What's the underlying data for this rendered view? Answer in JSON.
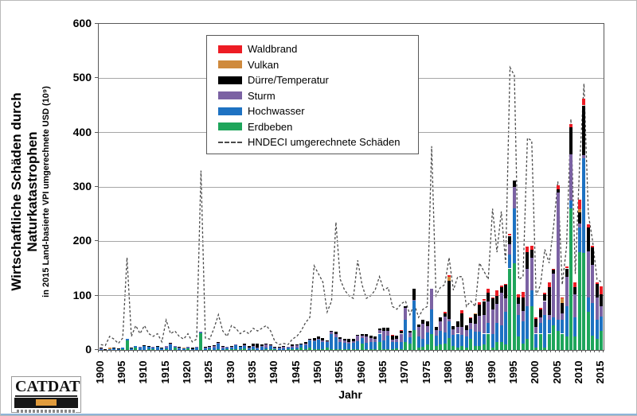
{
  "figure": {
    "y_axis_title_line1": "Wirtschaftliche Schäden durch",
    "y_axis_title_line2": "Naturkatastrophen",
    "y_axis_subtitle": "in 2015 Land-basierte VPI umgerechnete USD (10⁹)",
    "x_axis_title": "Jahr",
    "logo_text": "CATDAT"
  },
  "legend": {
    "items": [
      {
        "label": "Waldbrand",
        "color": "#ed1c24",
        "type": "box"
      },
      {
        "label": "Vulkan",
        "color": "#cf8a3d",
        "type": "box"
      },
      {
        "label": "Dürre/Temperatur",
        "color": "#000000",
        "type": "box"
      },
      {
        "label": "Sturm",
        "color": "#7b62a3",
        "type": "box"
      },
      {
        "label": "Hochwasser",
        "color": "#1e72c2",
        "type": "box"
      },
      {
        "label": "Erdbeben",
        "color": "#1ea55b",
        "type": "box"
      },
      {
        "label": "HNDECI umgerechnete Schäden",
        "color": "#4a4a4a",
        "type": "dashed-line"
      }
    ]
  },
  "chart_data": {
    "type": "bar",
    "subtype": "stacked-bars-with-dashed-line",
    "title": "",
    "xlabel": "Jahr",
    "ylabel": "Wirtschaftliche Schäden durch Naturkatastrophen in 2015 Land-basierte VPI umgerechnete USD (10⁹)",
    "ylim": [
      0,
      600
    ],
    "yticks": [
      0,
      100,
      200,
      300,
      400,
      500,
      600
    ],
    "xtick_interval": 5,
    "grid": "horizontal",
    "legend_position": "top-left-inside",
    "years": [
      1900,
      1901,
      1902,
      1903,
      1904,
      1905,
      1906,
      1907,
      1908,
      1909,
      1910,
      1911,
      1912,
      1913,
      1914,
      1915,
      1916,
      1917,
      1918,
      1919,
      1920,
      1921,
      1922,
      1923,
      1924,
      1925,
      1926,
      1927,
      1928,
      1929,
      1930,
      1931,
      1932,
      1933,
      1934,
      1935,
      1936,
      1937,
      1938,
      1939,
      1940,
      1941,
      1942,
      1943,
      1944,
      1945,
      1946,
      1947,
      1948,
      1949,
      1950,
      1951,
      1952,
      1953,
      1954,
      1955,
      1956,
      1957,
      1958,
      1959,
      1960,
      1961,
      1962,
      1963,
      1964,
      1965,
      1966,
      1967,
      1968,
      1969,
      1970,
      1971,
      1972,
      1973,
      1974,
      1975,
      1976,
      1977,
      1978,
      1979,
      1980,
      1981,
      1982,
      1983,
      1984,
      1985,
      1986,
      1987,
      1988,
      1989,
      1990,
      1991,
      1992,
      1993,
      1994,
      1995,
      1996,
      1997,
      1998,
      1999,
      2000,
      2001,
      2002,
      2003,
      2004,
      2005,
      2006,
      2007,
      2008,
      2009,
      2010,
      2011,
      2012,
      2013,
      2014,
      2015
    ],
    "series": [
      {
        "name": "Erdbeben",
        "color": "#1ea55b",
        "values": [
          0,
          0,
          1,
          0,
          0,
          2,
          18,
          0,
          5,
          0,
          0,
          2,
          1,
          0,
          0,
          1,
          0,
          4,
          0,
          0,
          3,
          0,
          0,
          31,
          0,
          1,
          0,
          1,
          0,
          1,
          1,
          1,
          1,
          3,
          0,
          1,
          0,
          0,
          1,
          2,
          1,
          0,
          0,
          2,
          1,
          1,
          4,
          1,
          5,
          1,
          1,
          1,
          5,
          1,
          1,
          1,
          1,
          1,
          1,
          1,
          12,
          1,
          2,
          2,
          15,
          2,
          2,
          2,
          3,
          2,
          15,
          12,
          36,
          5,
          6,
          10,
          30,
          8,
          10,
          12,
          22,
          8,
          5,
          8,
          5,
          20,
          8,
          8,
          10,
          30,
          5,
          15,
          15,
          10,
          150,
          160,
          25,
          12,
          20,
          80,
          5,
          30,
          5,
          30,
          45,
          35,
          30,
          25,
          260,
          25,
          180,
          178,
          70,
          27,
          20,
          35
        ]
      },
      {
        "name": "Hochwasser",
        "color": "#1e72c2",
        "values": [
          1,
          1,
          1,
          3,
          2,
          2,
          2,
          3,
          2,
          4,
          7,
          4,
          3,
          6,
          3,
          4,
          10,
          2,
          3,
          3,
          2,
          2,
          4,
          2,
          4,
          4,
          5,
          11,
          3,
          3,
          4,
          8,
          5,
          5,
          3,
          5,
          4,
          7,
          4,
          6,
          3,
          3,
          3,
          3,
          3,
          4,
          6,
          8,
          12,
          15,
          18,
          14,
          10,
          28,
          22,
          14,
          12,
          10,
          12,
          15,
          10,
          12,
          12,
          12,
          15,
          15,
          25,
          12,
          12,
          12,
          40,
          12,
          55,
          20,
          15,
          22,
          45,
          18,
          25,
          20,
          30,
          20,
          25,
          20,
          20,
          18,
          25,
          25,
          20,
          20,
          25,
          35,
          30,
          60,
          25,
          100,
          40,
          40,
          60,
          30,
          25,
          20,
          60,
          25,
          15,
          20,
          25,
          55,
          15,
          35,
          45,
          175,
          26,
          60,
          36,
          26
        ]
      },
      {
        "name": "Sturm",
        "color": "#7b62a3",
        "values": [
          2,
          0,
          0,
          0,
          0,
          0,
          0,
          0,
          0,
          2,
          0,
          0,
          2,
          0,
          0,
          3,
          2,
          2,
          2,
          1,
          1,
          0,
          2,
          1,
          1,
          2,
          3,
          1,
          4,
          2,
          2,
          1,
          1,
          1,
          1,
          2,
          1,
          1,
          6,
          1,
          1,
          1,
          3,
          1,
          4,
          4,
          1,
          2,
          2,
          2,
          2,
          2,
          2,
          4,
          6,
          5,
          5,
          3,
          3,
          10,
          5,
          12,
          8,
          6,
          6,
          18,
          8,
          5,
          6,
          16,
          23,
          8,
          1,
          18,
          28,
          12,
          38,
          10,
          18,
          30,
          5,
          10,
          12,
          15,
          12,
          12,
          15,
          30,
          35,
          40,
          45,
          35,
          60,
          25,
          20,
          40,
          20,
          20,
          70,
          60,
          12,
          10,
          25,
          10,
          80,
          235,
          12,
          55,
          85,
          42,
          8,
          6,
          85,
          70,
          40,
          20
        ]
      },
      {
        "name": "Dürre/Temperatur",
        "color": "#000000",
        "values": [
          1,
          1,
          0,
          2,
          1,
          0,
          0,
          1,
          0,
          0,
          2,
          1,
          0,
          2,
          1,
          0,
          1,
          0,
          1,
          0,
          0,
          3,
          0,
          0,
          1,
          1,
          1,
          1,
          1,
          0,
          1,
          0,
          1,
          2,
          4,
          3,
          6,
          2,
          1,
          1,
          1,
          2,
          1,
          0,
          2,
          1,
          1,
          3,
          1,
          4,
          4,
          5,
          1,
          2,
          4,
          3,
          2,
          6,
          4,
          2,
          3,
          4,
          4,
          5,
          4,
          6,
          6,
          8,
          6,
          6,
          2,
          3,
          21,
          4,
          6,
          8,
          0,
          7,
          7,
          5,
          70,
          6,
          10,
          25,
          8,
          8,
          18,
          20,
          25,
          15,
          20,
          15,
          10,
          25,
          15,
          11,
          12,
          25,
          30,
          15,
          15,
          15,
          12,
          50,
          8,
          5,
          20,
          15,
          50,
          14,
          20,
          91,
          44,
          32,
          26,
          21
        ]
      },
      {
        "name": "Vulkan",
        "color": "#cf8a3d",
        "values": [
          0,
          0,
          2,
          0,
          0,
          0,
          0,
          0,
          0,
          0,
          0,
          0,
          0,
          0,
          0,
          0,
          0,
          0,
          0,
          1,
          0,
          0,
          0,
          0,
          0,
          0,
          0,
          0,
          0,
          0,
          0,
          0,
          0,
          0,
          0,
          0,
          0,
          0,
          0,
          0,
          0,
          0,
          0,
          0,
          0,
          0,
          0,
          0,
          0,
          0,
          0,
          0,
          0,
          0,
          0,
          0,
          0,
          0,
          0,
          0,
          0,
          0,
          0,
          0,
          0,
          0,
          0,
          0,
          0,
          0,
          0,
          0,
          0,
          0,
          0,
          0,
          0,
          0,
          0,
          0,
          8,
          0,
          0,
          0,
          0,
          0,
          2,
          0,
          0,
          0,
          0,
          0,
          0,
          0,
          0,
          0,
          0,
          0,
          0,
          0,
          0,
          0,
          0,
          0,
          0,
          0,
          8,
          0,
          0,
          0,
          6,
          0,
          0,
          0,
          0,
          0
        ]
      },
      {
        "name": "Waldbrand",
        "color": "#ed1c24",
        "values": [
          0,
          0,
          0,
          0,
          0,
          0,
          0,
          0,
          0,
          0,
          0,
          0,
          0,
          0,
          0,
          0,
          0,
          0,
          0,
          0,
          0,
          0,
          0,
          0,
          0,
          0,
          0,
          0,
          0,
          0,
          0,
          0,
          0,
          0,
          0,
          0,
          0,
          0,
          0,
          0,
          0,
          0,
          0,
          0,
          0,
          0,
          0,
          0,
          0,
          0,
          0,
          0,
          0,
          0,
          0,
          0,
          0,
          0,
          0,
          0,
          0,
          0,
          0,
          0,
          0,
          0,
          0,
          1,
          0,
          1,
          0,
          0,
          0,
          0,
          0,
          0,
          0,
          0,
          0,
          3,
          2,
          0,
          0,
          5,
          0,
          2,
          0,
          5,
          3,
          7,
          2,
          10,
          4,
          2,
          4,
          0,
          6,
          10,
          10,
          7,
          3,
          2,
          3,
          9,
          2,
          8,
          2,
          3,
          5,
          8,
          18,
          12,
          6,
          3,
          2,
          15
        ]
      }
    ],
    "line_series": {
      "name": "HNDECI umgerechnete Schäden",
      "style": "dashed",
      "color": "#4a4a4a",
      "values": [
        10,
        8,
        25,
        20,
        12,
        22,
        170,
        25,
        45,
        30,
        45,
        30,
        25,
        30,
        15,
        55,
        30,
        35,
        25,
        20,
        30,
        15,
        20,
        330,
        22,
        20,
        40,
        65,
        35,
        25,
        45,
        40,
        30,
        35,
        30,
        40,
        35,
        40,
        45,
        35,
        15,
        10,
        12,
        10,
        20,
        25,
        35,
        50,
        60,
        155,
        140,
        125,
        70,
        90,
        235,
        130,
        110,
        100,
        95,
        165,
        120,
        95,
        100,
        110,
        135,
        110,
        115,
        80,
        75,
        85,
        90,
        65,
        85,
        60,
        75,
        80,
        375,
        100,
        115,
        120,
        170,
        110,
        135,
        135,
        80,
        90,
        80,
        160,
        145,
        130,
        260,
        180,
        255,
        160,
        520,
        505,
        130,
        135,
        390,
        385,
        100,
        120,
        185,
        160,
        225,
        310,
        120,
        190,
        425,
        140,
        340,
        490,
        250,
        200,
        130,
        125
      ]
    }
  }
}
